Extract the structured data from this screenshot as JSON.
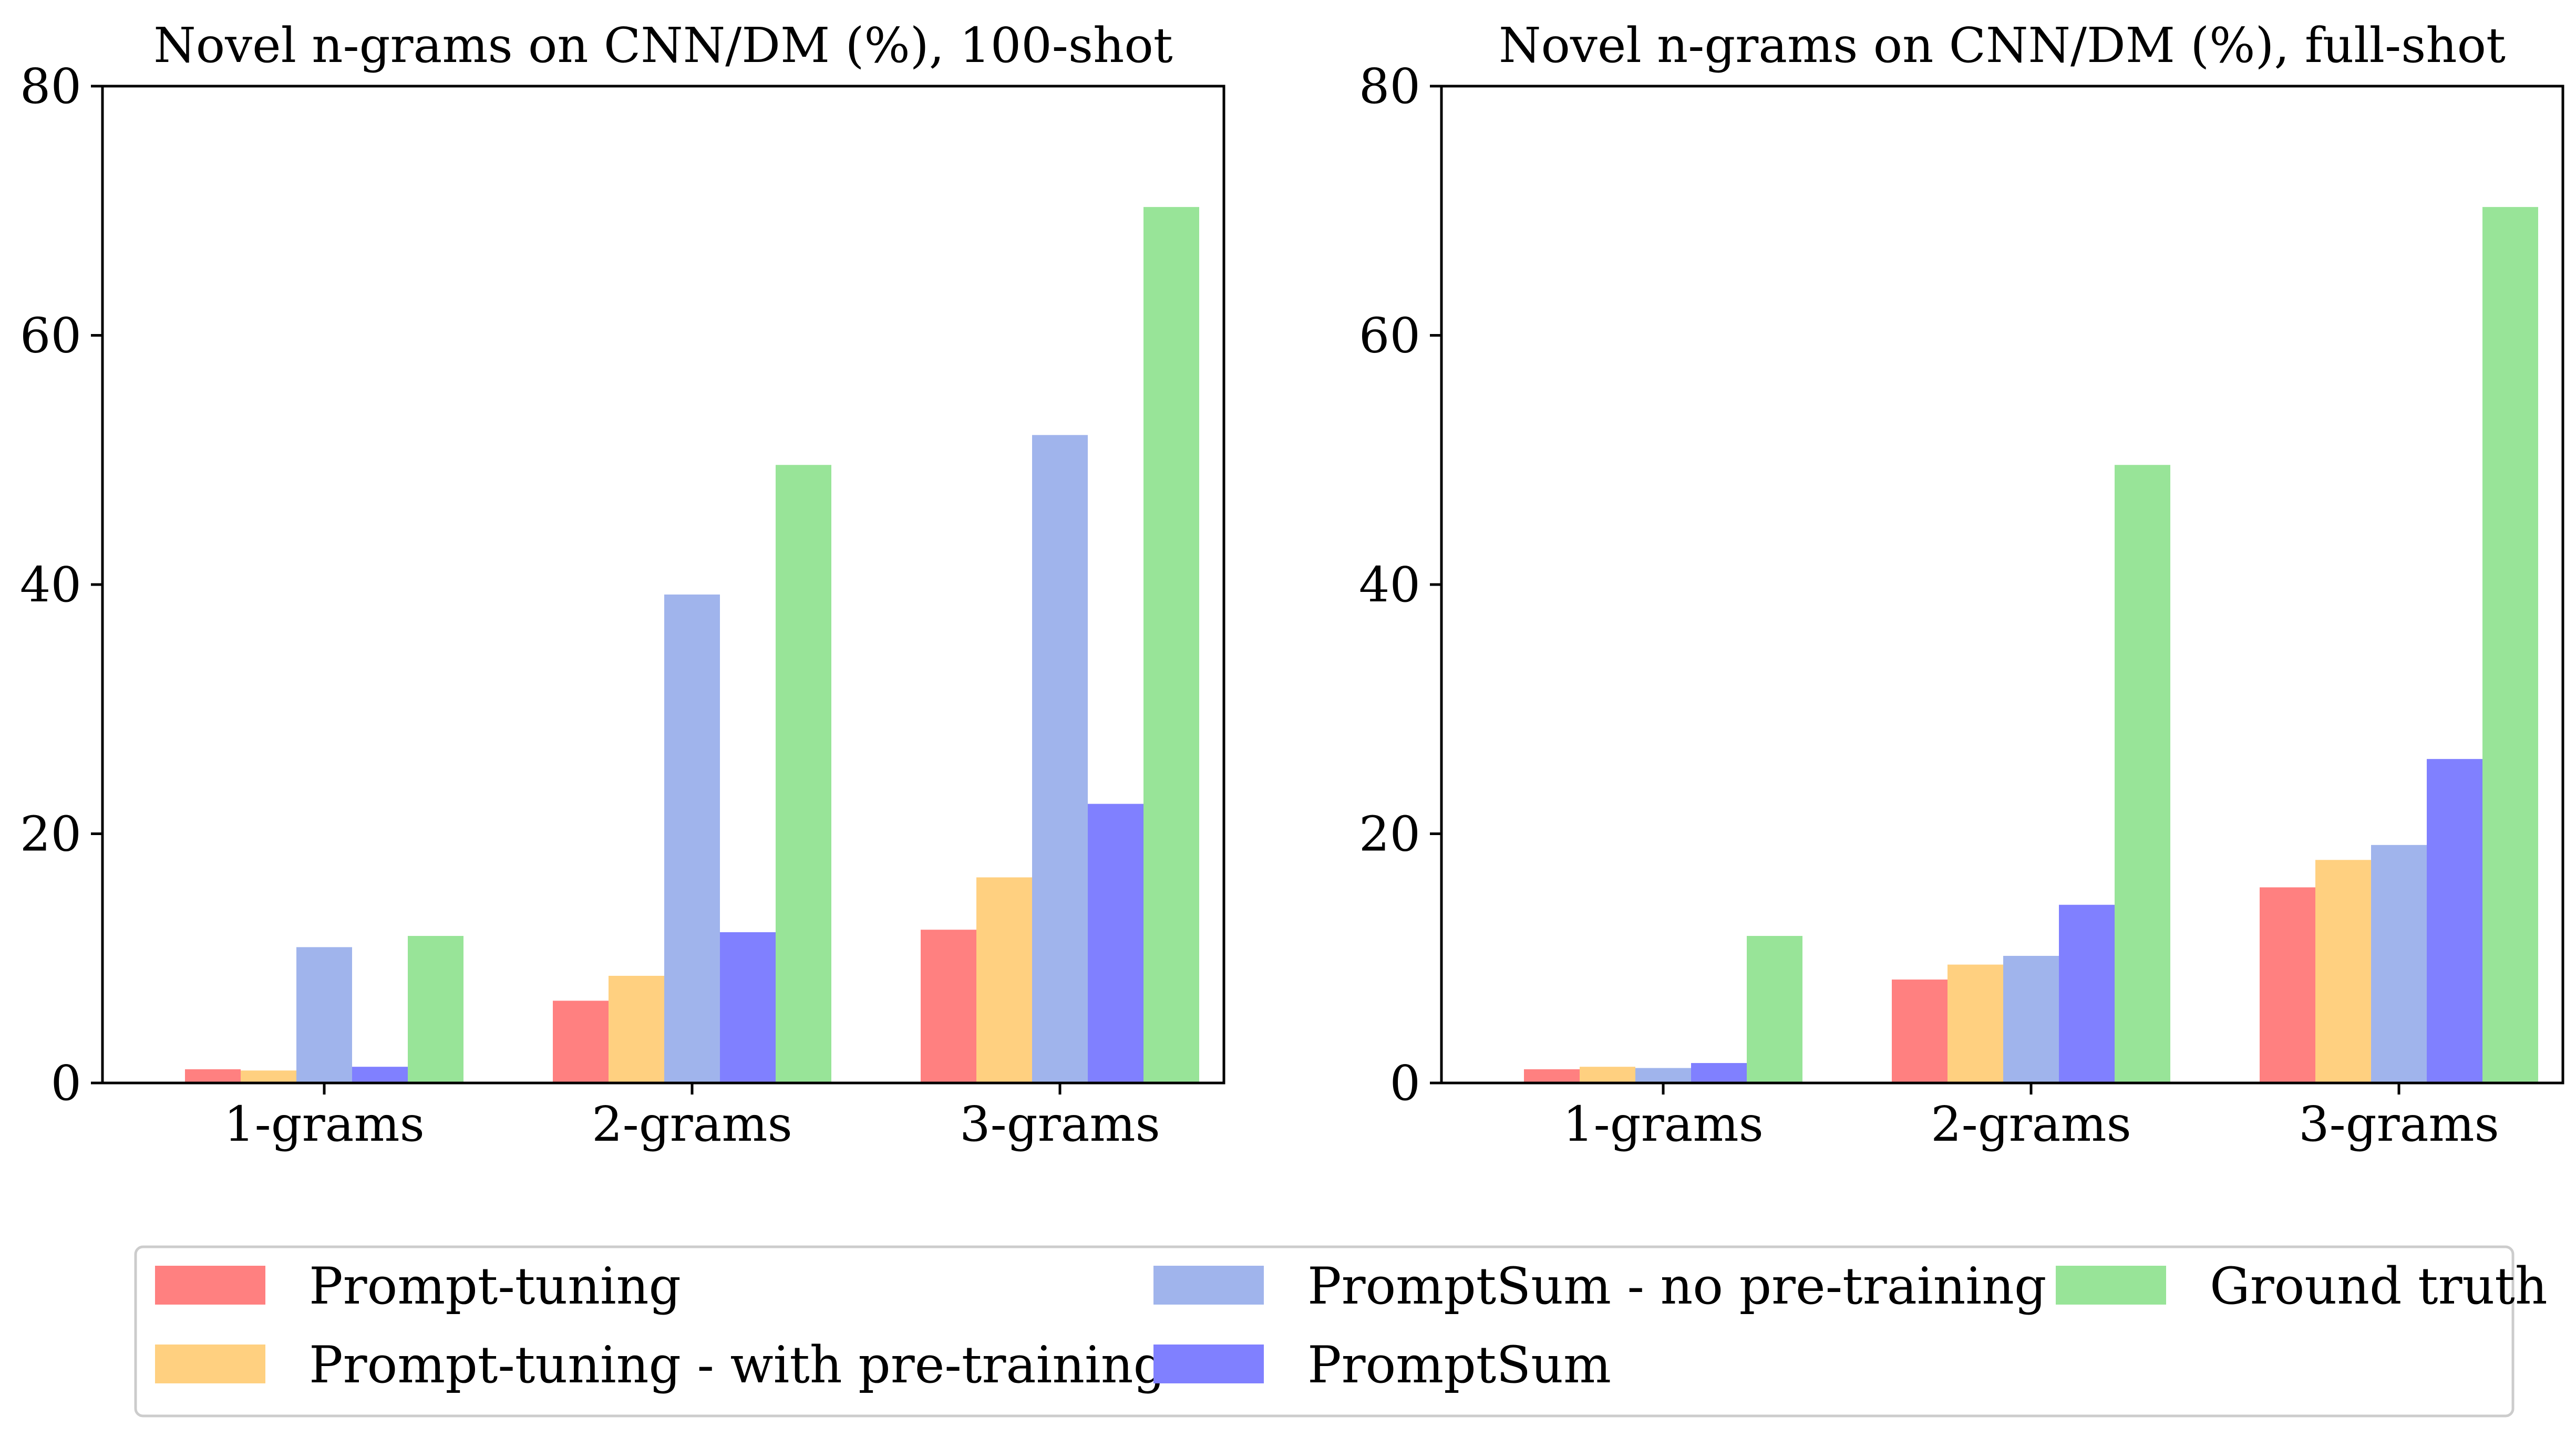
{
  "chart_data": [
    {
      "type": "bar",
      "title": "Novel n-grams on CNN/DM (%), 100-shot",
      "categories": [
        "1-grams",
        "2-grams",
        "3-grams"
      ],
      "ylim": [
        0,
        80
      ],
      "yticks": [
        "0",
        "20",
        "40",
        "60",
        "80"
      ],
      "grid": false,
      "series": [
        {
          "name": "Prompt-tuning",
          "values": [
            1.1,
            6.6,
            12.3
          ]
        },
        {
          "name": "Prompt-tuning - with pre-training",
          "values": [
            1.0,
            8.6,
            16.5
          ]
        },
        {
          "name": "PromptSum - no pre-training",
          "values": [
            10.9,
            39.2,
            52.0
          ]
        },
        {
          "name": "PromptSum",
          "values": [
            1.3,
            12.1,
            22.4
          ]
        },
        {
          "name": "Ground truth",
          "values": [
            11.8,
            49.6,
            70.3
          ]
        }
      ]
    },
    {
      "type": "bar",
      "title": "Novel n-grams on CNN/DM (%), full-shot",
      "categories": [
        "1-grams",
        "2-grams",
        "3-grams"
      ],
      "ylim": [
        0,
        80
      ],
      "yticks": [
        "0",
        "20",
        "40",
        "60",
        "80"
      ],
      "grid": false,
      "series": [
        {
          "name": "Prompt-tuning",
          "values": [
            1.1,
            8.3,
            15.7
          ]
        },
        {
          "name": "Prompt-tuning - with pre-training",
          "values": [
            1.3,
            9.5,
            17.9
          ]
        },
        {
          "name": "PromptSum - no pre-training",
          "values": [
            1.2,
            10.2,
            19.1
          ]
        },
        {
          "name": "PromptSum",
          "values": [
            1.6,
            14.3,
            26.0
          ]
        },
        {
          "name": "Ground truth",
          "values": [
            11.8,
            49.6,
            70.3
          ]
        }
      ]
    }
  ],
  "legend": {
    "placement": "bottom",
    "items": [
      {
        "label": "Prompt-tuning",
        "color": "#ff8080"
      },
      {
        "label": "Prompt-tuning - with pre-training",
        "color": "#ffd080"
      },
      {
        "label": "PromptSum - no pre-training",
        "color": "#a0b4ec"
      },
      {
        "label": "PromptSum",
        "color": "#8080ff"
      },
      {
        "label": "Ground truth",
        "color": "#98e498"
      }
    ]
  },
  "series_colors": [
    "#ff8080",
    "#ffd080",
    "#a0b4ec",
    "#8080ff",
    "#98e498"
  ]
}
